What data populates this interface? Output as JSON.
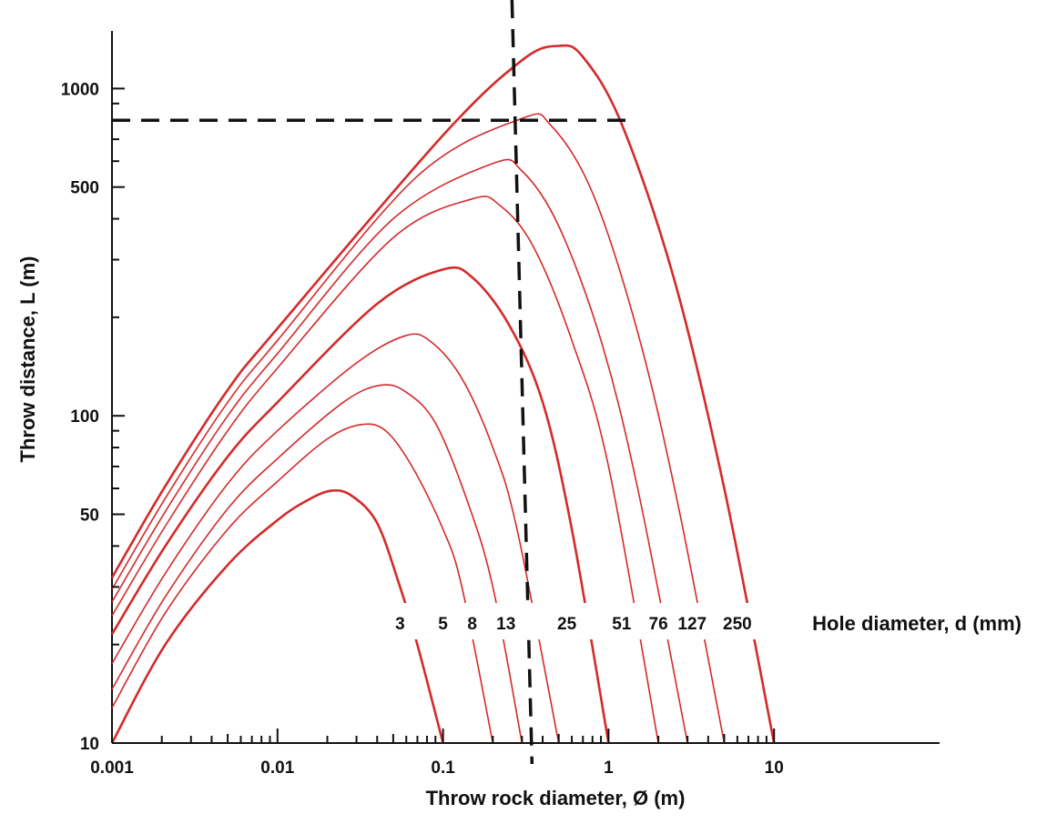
{
  "chart_data": {
    "type": "line",
    "x_scale": "log",
    "y_scale": "log",
    "xlabel": "Throw rock diameter, Ø (m)",
    "ylabel": "Throw distance, L (m)",
    "xlim": [
      0.001,
      100
    ],
    "ylim": [
      10,
      1500
    ],
    "x_tick_labels": [
      {
        "value": 0.001,
        "label": "0.001"
      },
      {
        "value": 0.01,
        "label": "0.01"
      },
      {
        "value": 0.1,
        "label": "0.1"
      },
      {
        "value": 1,
        "label": "1"
      },
      {
        "value": 10,
        "label": "10"
      }
    ],
    "y_tick_labels": [
      {
        "value": 10,
        "label": "10"
      },
      {
        "value": 50,
        "label": "50"
      },
      {
        "value": 100,
        "label": "100"
      },
      {
        "value": 500,
        "label": "500"
      },
      {
        "value": 1000,
        "label": "1000"
      }
    ],
    "legend_title": "Hole diameter, d (mm)",
    "line_color": "#d42a2a",
    "series": [
      {
        "name": "3",
        "label_x": 0.055,
        "points": [
          [
            0.001,
            10
          ],
          [
            0.0021,
            20
          ],
          [
            0.005,
            35
          ],
          [
            0.01,
            48
          ],
          [
            0.015,
            55
          ],
          [
            0.021,
            59
          ],
          [
            0.028,
            57
          ],
          [
            0.04,
            47
          ],
          [
            0.055,
            30
          ],
          [
            0.07,
            20
          ],
          [
            0.1,
            10
          ]
        ]
      },
      {
        "name": "5",
        "label_x": 0.1,
        "points": [
          [
            0.001,
            12.8
          ],
          [
            0.0021,
            25
          ],
          [
            0.005,
            45
          ],
          [
            0.01,
            63
          ],
          [
            0.02,
            85
          ],
          [
            0.032,
            94
          ],
          [
            0.045,
            90
          ],
          [
            0.065,
            70
          ],
          [
            0.1,
            45
          ],
          [
            0.13,
            30
          ],
          [
            0.2,
            10
          ]
        ]
      },
      {
        "name": "8",
        "label_x": 0.15,
        "points": [
          [
            0.001,
            14.6
          ],
          [
            0.0021,
            28
          ],
          [
            0.005,
            52
          ],
          [
            0.01,
            74
          ],
          [
            0.025,
            110
          ],
          [
            0.042,
            124
          ],
          [
            0.06,
            118
          ],
          [
            0.09,
            95
          ],
          [
            0.14,
            55
          ],
          [
            0.2,
            30
          ],
          [
            0.3,
            10
          ]
        ]
      },
      {
        "name": "13",
        "label_x": 0.24,
        "points": [
          [
            0.001,
            17.5
          ],
          [
            0.0021,
            33
          ],
          [
            0.005,
            62
          ],
          [
            0.01,
            90
          ],
          [
            0.03,
            145
          ],
          [
            0.06,
            176
          ],
          [
            0.085,
            168
          ],
          [
            0.13,
            130
          ],
          [
            0.2,
            80
          ],
          [
            0.28,
            45
          ],
          [
            0.5,
            10
          ]
        ]
      },
      {
        "name": "25",
        "label_x": 0.56,
        "points": [
          [
            0.001,
            21.5
          ],
          [
            0.0021,
            40
          ],
          [
            0.005,
            75
          ],
          [
            0.01,
            110
          ],
          [
            0.04,
            220
          ],
          [
            0.1,
            280
          ],
          [
            0.15,
            265
          ],
          [
            0.25,
            190
          ],
          [
            0.4,
            110
          ],
          [
            0.6,
            45
          ],
          [
            1.0,
            10
          ]
        ]
      },
      {
        "name": "51",
        "label_x": 1.2,
        "points": [
          [
            0.001,
            24.5
          ],
          [
            0.0021,
            46
          ],
          [
            0.005,
            90
          ],
          [
            0.01,
            140
          ],
          [
            0.05,
            350
          ],
          [
            0.15,
            460
          ],
          [
            0.22,
            440
          ],
          [
            0.35,
            330
          ],
          [
            0.6,
            170
          ],
          [
            1.0,
            70
          ],
          [
            2.0,
            10
          ]
        ]
      },
      {
        "name": "76",
        "label_x": 2.0,
        "points": [
          [
            0.001,
            27
          ],
          [
            0.0021,
            51
          ],
          [
            0.005,
            100
          ],
          [
            0.01,
            155
          ],
          [
            0.05,
            400
          ],
          [
            0.2,
            590
          ],
          [
            0.3,
            560
          ],
          [
            0.5,
            380
          ],
          [
            0.9,
            170
          ],
          [
            1.5,
            60
          ],
          [
            3.0,
            10
          ]
        ]
      },
      {
        "name": "127",
        "label_x": 3.2,
        "points": [
          [
            0.001,
            29.5
          ],
          [
            0.0021,
            56
          ],
          [
            0.005,
            110
          ],
          [
            0.01,
            170
          ],
          [
            0.07,
            540
          ],
          [
            0.3,
            810
          ],
          [
            0.45,
            770
          ],
          [
            0.8,
            480
          ],
          [
            1.5,
            180
          ],
          [
            2.6,
            55
          ],
          [
            5.0,
            10
          ]
        ]
      },
      {
        "name": "250",
        "label_x": 6.0,
        "points": [
          [
            0.001,
            32
          ],
          [
            0.0021,
            61
          ],
          [
            0.005,
            120
          ],
          [
            0.01,
            185
          ],
          [
            0.1,
            720
          ],
          [
            0.3,
            1220
          ],
          [
            0.5,
            1350
          ],
          [
            0.7,
            1250
          ],
          [
            1.2,
            780
          ],
          [
            2.5,
            260
          ],
          [
            5.0,
            60
          ],
          [
            10.0,
            10
          ]
        ]
      }
    ],
    "reference_lines": [
      {
        "orientation": "vertical",
        "x": 0.3
      },
      {
        "orientation": "horizontal",
        "y": 800
      }
    ]
  }
}
